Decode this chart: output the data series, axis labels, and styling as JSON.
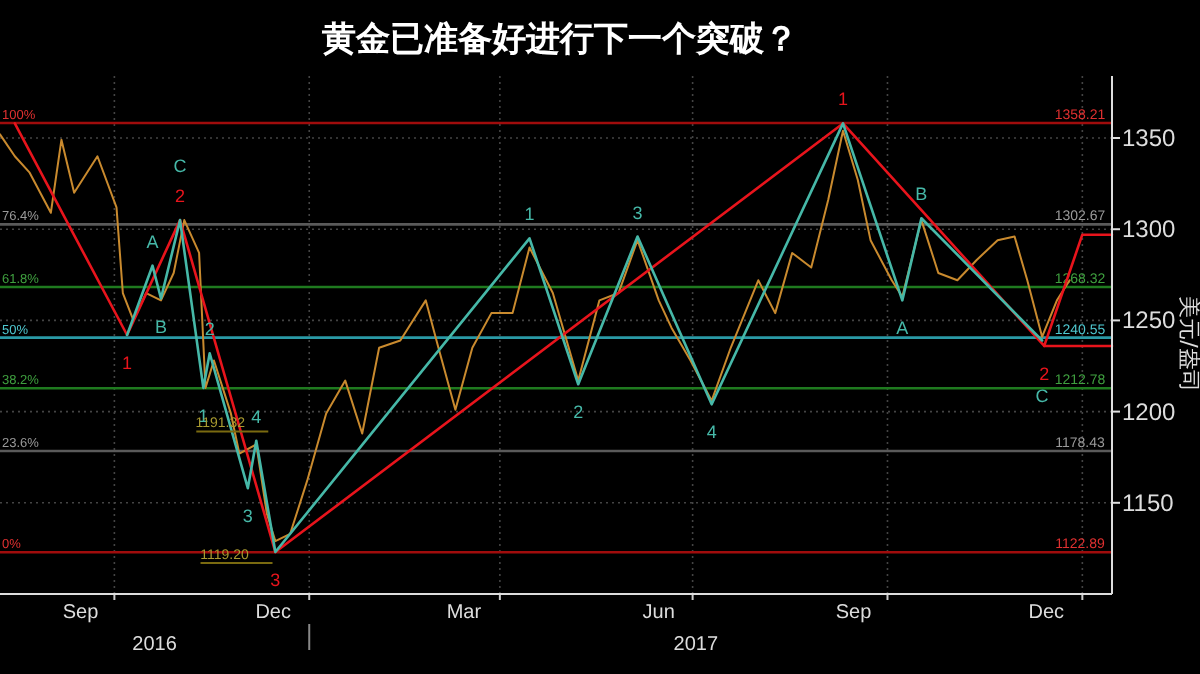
{
  "chart_data": {
    "type": "line",
    "title": "黄金已准备好进行下一个突破？",
    "ylabel": "美元/盎司",
    "xlim": [
      "2016-08-08",
      "2018-01-15"
    ],
    "ylim": [
      1100,
      1384
    ],
    "xticks": [
      {
        "value": "2016-09-15",
        "label": "Sep"
      },
      {
        "value": "2016-10-01",
        "label": null
      },
      {
        "value": "2016-12-15",
        "label": "Dec"
      },
      {
        "value": "2017-01-01",
        "label": null
      },
      {
        "value": "2017-03-15",
        "label": "Mar"
      },
      {
        "value": "2017-04-01",
        "label": null
      },
      {
        "value": "2017-06-15",
        "label": "Jun"
      },
      {
        "value": "2017-07-01",
        "label": null
      },
      {
        "value": "2017-09-15",
        "label": "Sep"
      },
      {
        "value": "2017-10-01",
        "label": null
      },
      {
        "value": "2017-12-15",
        "label": "Dec"
      },
      {
        "value": "2018-01-01",
        "label": null
      }
    ],
    "yticks": [
      1150,
      1200,
      1250,
      1300,
      1350
    ],
    "grid": true,
    "series": [
      {
        "color": "#c98a2e",
        "x": [
          "2016-08-08",
          "2016-08-15",
          "2016-08-22",
          "2016-09-01",
          "2016-09-06",
          "2016-09-12",
          "2016-09-23",
          "2016-10-02",
          "2016-10-05",
          "2016-10-10",
          "2016-10-16",
          "2016-10-23",
          "2016-10-29",
          "2016-11-03",
          "2016-11-10",
          "2016-11-13",
          "2016-11-17",
          "2016-11-25",
          "2016-11-29",
          "2016-12-07",
          "2016-12-12",
          "2016-12-16",
          "2016-12-23",
          "2016-12-31",
          "2017-01-09",
          "2017-01-18",
          "2017-01-26",
          "2017-02-03",
          "2017-02-13",
          "2017-02-25",
          "2017-03-03",
          "2017-03-11",
          "2017-03-19",
          "2017-03-28",
          "2017-04-07",
          "2017-04-15",
          "2017-04-26",
          "2017-05-08",
          "2017-05-18",
          "2017-05-27",
          "2017-06-05",
          "2017-06-15",
          "2017-06-21",
          "2017-06-30",
          "2017-07-10",
          "2017-07-19",
          "2017-08-01",
          "2017-08-09",
          "2017-08-17",
          "2017-08-26",
          "2017-09-03",
          "2017-09-10",
          "2017-09-17",
          "2017-09-23",
          "2017-10-03",
          "2017-10-08",
          "2017-10-17",
          "2017-10-25",
          "2017-11-03",
          "2017-11-12",
          "2017-11-22",
          "2017-11-30",
          "2017-12-06",
          "2017-12-13",
          "2017-12-20",
          "2017-12-26"
        ],
        "values": [
          1352,
          1340,
          1331,
          1309,
          1349,
          1320,
          1340,
          1312,
          1265,
          1250,
          1265,
          1261,
          1276,
          1305,
          1287,
          1213,
          1228,
          1199,
          1177,
          1182,
          1144,
          1129,
          1133,
          1162,
          1199,
          1217,
          1188,
          1235,
          1239,
          1261,
          1235,
          1201,
          1235,
          1254,
          1254,
          1290,
          1265,
          1217,
          1261,
          1265,
          1294,
          1261,
          1246,
          1228,
          1206,
          1235,
          1272,
          1254,
          1287,
          1279,
          1316,
          1354,
          1327,
          1294,
          1272,
          1263,
          1305,
          1276,
          1272,
          1283,
          1294,
          1296,
          1272,
          1241,
          1261,
          1272
        ]
      },
      {
        "color": "#e8141c",
        "x": [
          "2016-08-15",
          "2016-10-07",
          "2016-11-01",
          "2016-12-16",
          "2017-09-10",
          "2017-12-14",
          "2018-01-01",
          "2018-01-15"
        ],
        "values": [
          1358,
          1242,
          1305,
          1123,
          1358,
          1236,
          1297,
          1297
        ]
      },
      {
        "color": "#46b8a8",
        "x": [
          "2016-10-07",
          "2016-10-19",
          "2016-10-23",
          "2016-11-01",
          "2016-11-12",
          "2016-11-15",
          "2016-12-03",
          "2016-12-07",
          "2016-12-16",
          "2017-04-15",
          "2017-05-08",
          "2017-06-05",
          "2017-07-10",
          "2017-09-10",
          "2017-10-08",
          "2017-10-17",
          "2017-12-13"
        ],
        "values": [
          1242,
          1280,
          1262,
          1305,
          1213,
          1232,
          1158,
          1184,
          1123,
          1295,
          1215,
          1296,
          1204,
          1358,
          1261,
          1306,
          1239
        ]
      },
      {
        "color": "#e8141c",
        "x": [
          "2017-12-14",
          "2018-01-15"
        ],
        "values": [
          1236,
          1236
        ]
      }
    ],
    "ref_lines": [
      {
        "axis": "y",
        "value": 1358.21,
        "label": "1358.21",
        "color": "#a00c0c"
      },
      {
        "axis": "y",
        "value": 1302.67,
        "label": "1302.67",
        "color": "#5a5a5a"
      },
      {
        "axis": "y",
        "value": 1268.32,
        "label": "1268.32",
        "color": "#1f7a1f"
      },
      {
        "axis": "y",
        "value": 1240.55,
        "label": "1240.55",
        "color": "#2a9aa6"
      },
      {
        "axis": "y",
        "value": 1212.78,
        "label": "1212.78",
        "color": "#1f7a1f"
      },
      {
        "axis": "y",
        "value": 1178.43,
        "label": "1178.43",
        "color": "#5a5a5a"
      },
      {
        "axis": "y",
        "value": 1122.89,
        "label": "1122.89",
        "color": "#a00c0c"
      }
    ],
    "annotations": [
      {
        "text": "100%",
        "x": "2016-08-08",
        "y": 1358.21
      },
      {
        "text": "76.4%",
        "x": "2016-08-08",
        "y": 1302.67
      },
      {
        "text": "61.8%",
        "x": "2016-08-08",
        "y": 1268.32
      },
      {
        "text": "50%",
        "x": "2016-08-08",
        "y": 1240.55
      },
      {
        "text": "38.2%",
        "x": "2016-08-08",
        "y": 1212.78
      },
      {
        "text": "23.6%",
        "x": "2016-08-08",
        "y": 1178.43
      },
      {
        "text": "0%",
        "x": "2016-08-08",
        "y": 1122.89
      },
      {
        "text": "1191.32",
        "x": "2016-11-20",
        "y": 1191.32
      },
      {
        "text": "1119.20",
        "x": "2016-11-22",
        "y": 1119.2
      },
      {
        "text": "1",
        "x": "2016-10-07",
        "y": 1242
      },
      {
        "text": "2",
        "x": "2016-11-01",
        "y": 1305
      },
      {
        "text": "3",
        "x": "2016-12-16",
        "y": 1123
      },
      {
        "text": "1",
        "x": "2017-09-10",
        "y": 1358
      },
      {
        "text": "2",
        "x": "2017-12-14",
        "y": 1236
      },
      {
        "text": "A",
        "x": "2016-10-19",
        "y": 1280
      },
      {
        "text": "B",
        "x": "2016-10-23",
        "y": 1262
      },
      {
        "text": "C",
        "x": "2016-11-01",
        "y": 1305
      },
      {
        "text": "1",
        "x": "2016-11-12",
        "y": 1213
      },
      {
        "text": "2",
        "x": "2016-11-15",
        "y": 1232
      },
      {
        "text": "3",
        "x": "2016-12-03",
        "y": 1158
      },
      {
        "text": "4",
        "x": "2016-12-07",
        "y": 1184
      },
      {
        "text": "1",
        "x": "2017-04-15",
        "y": 1295
      },
      {
        "text": "2",
        "x": "2017-05-08",
        "y": 1215
      },
      {
        "text": "3",
        "x": "2017-06-05",
        "y": 1296
      },
      {
        "text": "4",
        "x": "2017-07-10",
        "y": 1204
      },
      {
        "text": "A",
        "x": "2017-10-08",
        "y": 1261
      },
      {
        "text": "B",
        "x": "2017-10-17",
        "y": 1306
      },
      {
        "text": "C",
        "x": "2017-12-13",
        "y": 1239
      },
      "2016",
      "2017"
    ]
  }
}
